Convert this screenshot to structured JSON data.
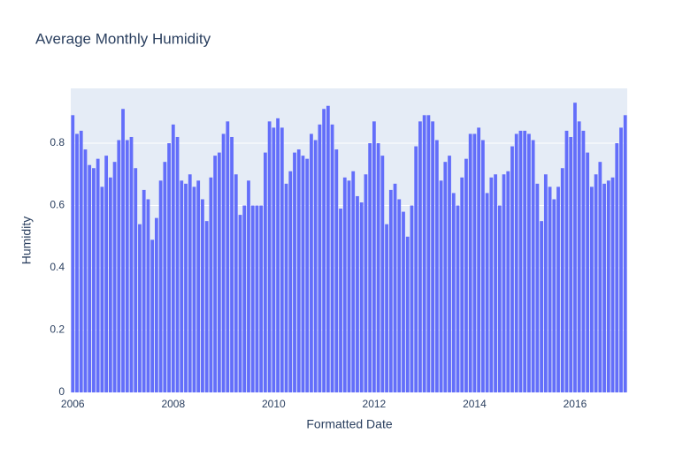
{
  "chart_data": {
    "type": "bar",
    "title": "Average Monthly Humidity",
    "xlabel": "Formatted Date",
    "ylabel": "Humidity",
    "x": [
      "2005-12",
      "2006-01",
      "2006-02",
      "2006-03",
      "2006-04",
      "2006-05",
      "2006-06",
      "2006-07",
      "2006-08",
      "2006-09",
      "2006-10",
      "2006-11",
      "2006-12",
      "2007-01",
      "2007-02",
      "2007-03",
      "2007-04",
      "2007-05",
      "2007-06",
      "2007-07",
      "2007-08",
      "2007-09",
      "2007-10",
      "2007-11",
      "2007-12",
      "2008-01",
      "2008-02",
      "2008-03",
      "2008-04",
      "2008-05",
      "2008-06",
      "2008-07",
      "2008-08",
      "2008-09",
      "2008-10",
      "2008-11",
      "2008-12",
      "2009-01",
      "2009-02",
      "2009-03",
      "2009-04",
      "2009-05",
      "2009-06",
      "2009-07",
      "2009-08",
      "2009-09",
      "2009-10",
      "2009-11",
      "2009-12",
      "2010-01",
      "2010-02",
      "2010-03",
      "2010-04",
      "2010-05",
      "2010-06",
      "2010-07",
      "2010-08",
      "2010-09",
      "2010-10",
      "2010-11",
      "2010-12",
      "2011-01",
      "2011-02",
      "2011-03",
      "2011-04",
      "2011-05",
      "2011-06",
      "2011-07",
      "2011-08",
      "2011-09",
      "2011-10",
      "2011-11",
      "2011-12",
      "2012-01",
      "2012-02",
      "2012-03",
      "2012-04",
      "2012-05",
      "2012-06",
      "2012-07",
      "2012-08",
      "2012-09",
      "2012-10",
      "2012-11",
      "2012-12",
      "2013-01",
      "2013-02",
      "2013-03",
      "2013-04",
      "2013-05",
      "2013-06",
      "2013-07",
      "2013-08",
      "2013-09",
      "2013-10",
      "2013-11",
      "2013-12",
      "2014-01",
      "2014-02",
      "2014-03",
      "2014-04",
      "2014-05",
      "2014-06",
      "2014-07",
      "2014-08",
      "2014-09",
      "2014-10",
      "2014-11",
      "2014-12",
      "2015-01",
      "2015-02",
      "2015-03",
      "2015-04",
      "2015-05",
      "2015-06",
      "2015-07",
      "2015-08",
      "2015-09",
      "2015-10",
      "2015-11",
      "2015-12",
      "2016-01",
      "2016-02",
      "2016-03",
      "2016-04",
      "2016-05",
      "2016-06",
      "2016-07",
      "2016-08",
      "2016-09",
      "2016-10",
      "2016-11",
      "2016-12"
    ],
    "values": [
      0.89,
      0.83,
      0.84,
      0.78,
      0.73,
      0.72,
      0.75,
      0.66,
      0.76,
      0.69,
      0.74,
      0.81,
      0.91,
      0.81,
      0.82,
      0.72,
      0.54,
      0.65,
      0.62,
      0.49,
      0.56,
      0.68,
      0.74,
      0.8,
      0.86,
      0.82,
      0.68,
      0.67,
      0.7,
      0.66,
      0.68,
      0.62,
      0.55,
      0.69,
      0.76,
      0.77,
      0.83,
      0.87,
      0.82,
      0.7,
      0.57,
      0.6,
      0.68,
      0.6,
      0.6,
      0.6,
      0.77,
      0.87,
      0.85,
      0.88,
      0.85,
      0.67,
      0.71,
      0.77,
      0.78,
      0.76,
      0.75,
      0.83,
      0.81,
      0.86,
      0.91,
      0.92,
      0.86,
      0.78,
      0.59,
      0.69,
      0.68,
      0.71,
      0.63,
      0.61,
      0.7,
      0.8,
      0.87,
      0.8,
      0.76,
      0.54,
      0.65,
      0.67,
      0.62,
      0.58,
      0.5,
      0.6,
      0.79,
      0.87,
      0.89,
      0.89,
      0.87,
      0.81,
      0.68,
      0.74,
      0.76,
      0.64,
      0.6,
      0.69,
      0.75,
      0.83,
      0.83,
      0.85,
      0.81,
      0.64,
      0.69,
      0.7,
      0.6,
      0.7,
      0.71,
      0.79,
      0.83,
      0.84,
      0.84,
      0.83,
      0.81,
      0.67,
      0.55,
      0.7,
      0.66,
      0.62,
      0.66,
      0.72,
      0.84,
      0.82,
      0.93,
      0.87,
      0.84,
      0.77,
      0.66,
      0.7,
      0.74,
      0.67,
      0.68,
      0.69,
      0.8,
      0.85,
      0.89
    ],
    "color": "#636efa",
    "xlim": [
      2005.96,
      2017.04
    ],
    "xticks": [
      2006,
      2008,
      2010,
      2012,
      2014,
      2016
    ],
    "ylim": [
      0,
      0.976
    ],
    "yticks": [
      0,
      0.2,
      0.4,
      0.6,
      0.8
    ],
    "grid": true
  }
}
